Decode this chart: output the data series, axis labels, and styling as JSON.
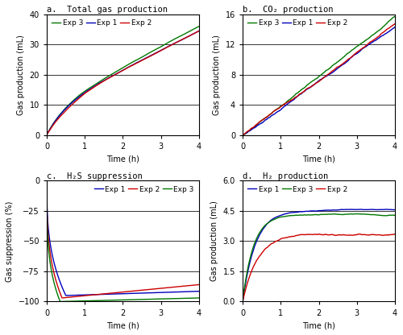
{
  "fig_width": 5.0,
  "fig_height": 4.16,
  "dpi": 100,
  "background_color": "#ffffff",
  "colors": {
    "exp1": "#0000bb",
    "exp2": "#cc0000",
    "exp3": "#007700"
  },
  "legend_labels": [
    "Exp 1",
    "Exp 2",
    "Exp 3"
  ],
  "panels": {
    "a": {
      "title": "a.  Total gas production",
      "xlabel": "Time (h)",
      "ylabel": "Gas production (mL)",
      "xlim": [
        0,
        4
      ],
      "ylim": [
        0,
        40
      ],
      "yticks": [
        0,
        10,
        20,
        30,
        40
      ],
      "xticks": [
        0,
        1,
        2,
        3,
        4
      ],
      "legend_loc": "upper left"
    },
    "b": {
      "title": "b.  CO₂ production",
      "xlabel": "Time (h)",
      "ylabel": "Gas production (mL)",
      "xlim": [
        0,
        4
      ],
      "ylim": [
        0,
        16
      ],
      "yticks": [
        0,
        4,
        8,
        12,
        16
      ],
      "xticks": [
        0,
        1,
        2,
        3,
        4
      ],
      "legend_loc": "upper left"
    },
    "c": {
      "title": "c.  H₂S suppression",
      "xlabel": "Time (h)",
      "ylabel": "Gas suppression (%)",
      "xlim": [
        0,
        4
      ],
      "ylim": [
        -100,
        0
      ],
      "yticks": [
        0,
        -25,
        -50,
        -75,
        -100
      ],
      "xticks": [
        0,
        1,
        2,
        3,
        4
      ],
      "legend_loc": "upper right"
    },
    "d": {
      "title": "d.  H₂ production",
      "xlabel": "Time (h)",
      "ylabel": "Gas production (mL)",
      "xlim": [
        0,
        4
      ],
      "ylim": [
        0,
        6
      ],
      "yticks": [
        0,
        1.5,
        3.0,
        4.5,
        6.0
      ],
      "xticks": [
        0,
        1,
        2,
        3,
        4
      ],
      "legend_loc": "upper left"
    }
  }
}
